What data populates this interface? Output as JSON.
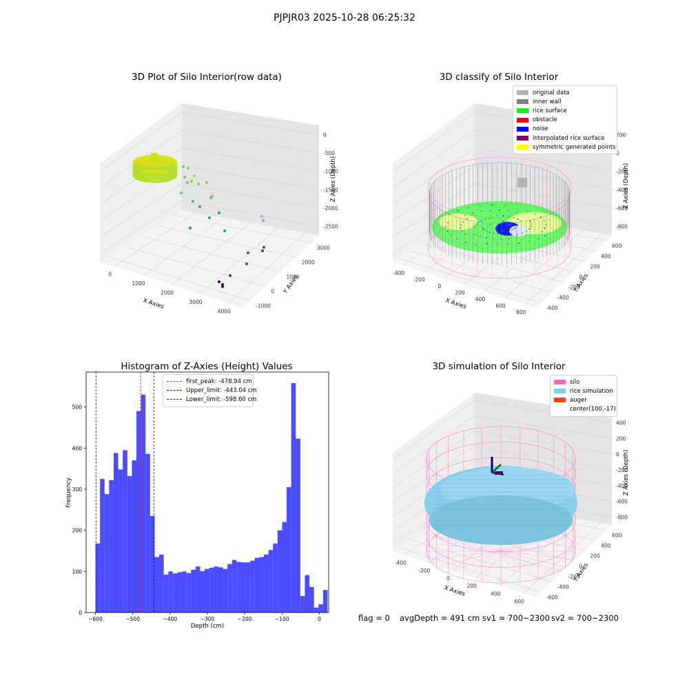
{
  "suptitle": "PJPJR03 2025-10-28 06:25:32",
  "footer": {
    "flag": "flag = 0",
    "avg_depth": "avgDepth = 491 cm",
    "sv1": "sv1 = 700~2300",
    "sv2": "sv2 = 700~2300"
  },
  "panels": {
    "raw": {
      "title": "3D Plot of Silo Interior(row data)"
    },
    "classify": {
      "title": "3D classify of Silo Interior",
      "legend": [
        {
          "label": "original data",
          "color": "#b4b4b4"
        },
        {
          "label": "inner wall",
          "color": "#808080"
        },
        {
          "label": "rice surface",
          "color": "#00ff00"
        },
        {
          "label": "obstacle",
          "color": "#ff0000"
        },
        {
          "label": "noise",
          "color": "#0000ff"
        },
        {
          "label": "interpolated rice surface",
          "color": "#800080"
        },
        {
          "label": "symmetric generated points",
          "color": "#ffff00"
        }
      ]
    },
    "histogram": {
      "title": "Histogram of Z-Axies (Height) Values"
    },
    "simulation": {
      "title": "3D simulation of Silo Interior",
      "legend": [
        {
          "label": "silo",
          "color": "#ff69b4"
        },
        {
          "label": "rice simulation",
          "color": "#87ceeb"
        },
        {
          "label": "auger",
          "color": "#ff4500"
        },
        {
          "label": "center(100,-17)",
          "color": ""
        }
      ]
    }
  },
  "chart_data": [
    {
      "type": "scatter",
      "title": "3D Plot of Silo Interior(row data)",
      "xlabel": "X Axies",
      "ylabel": "Y Axies",
      "zlabel": "Z Axies (Depth)",
      "x_ticks": [
        "0",
        "1000",
        "2000",
        "3000",
        "4000"
      ],
      "y_ticks": [
        "-1000",
        "0",
        "1000",
        "2000",
        "3000"
      ],
      "z_ticks": [
        "0",
        "-500",
        "-1000",
        "-1500",
        "-2000",
        "-2500"
      ],
      "colormap": "viridis"
    },
    {
      "type": "scatter",
      "title": "3D classify of Silo Interior",
      "xlabel": "X Axies",
      "ylabel": "Y Axies",
      "zlabel": "Z Axies (Depth)",
      "x_ticks": [
        "-400",
        "-200",
        "0",
        "200",
        "400",
        "600",
        "800"
      ],
      "y_ticks": [
        "-600",
        "-400",
        "-200",
        "0",
        "200",
        "400",
        "600"
      ],
      "z_ticks": [
        "200",
        "0",
        "-200",
        "-400",
        "-600",
        "-800"
      ],
      "legend_placement": "top-right"
    },
    {
      "type": "bar",
      "title": "Histogram of Z-Axies (Height) Values",
      "xlabel": "Depth (cm)",
      "ylabel": "Frequency",
      "xlim": [
        -625,
        25
      ],
      "ylim": [
        0,
        585
      ],
      "x_ticks": [
        -600,
        -500,
        -400,
        -300,
        -200,
        -100,
        0
      ],
      "y_ticks": [
        0,
        100,
        200,
        300,
        400,
        500
      ],
      "bin_start": -600,
      "bin_width": 12.2,
      "values": [
        168,
        325,
        288,
        322,
        388,
        348,
        395,
        332,
        370,
        490,
        530,
        386,
        235,
        135,
        141,
        92,
        100,
        95,
        98,
        100,
        96,
        104,
        112,
        101,
        106,
        109,
        112,
        110,
        106,
        118,
        128,
        123,
        122,
        122,
        126,
        133,
        135,
        141,
        152,
        168,
        200,
        220,
        305,
        558,
        423,
        40,
        91,
        62,
        12,
        20,
        55
      ],
      "color": "#0000ff",
      "vlines": [
        {
          "label": "first_peak: -478.94 cm",
          "x": -478.94,
          "color": "#ff0000"
        },
        {
          "label": "Upper_limit: -443.04 cm",
          "x": -443.04,
          "color": "#0000ff"
        },
        {
          "label": "Lower_limit: -598.60 cm",
          "x": -598.6,
          "color": "#0000ff"
        }
      ],
      "legend_placement": "top-center"
    },
    {
      "type": "scatter",
      "title": "3D simulation of Silo Interior",
      "xlabel": "X Axies",
      "ylabel": "Y Axies",
      "zlabel": "Z Axies (Depth)",
      "x_ticks": [
        "-400",
        "-200",
        "0",
        "200",
        "400",
        "600"
      ],
      "y_ticks": [
        "-600",
        "-400",
        "-200",
        "0",
        "200",
        "400",
        "600"
      ],
      "z_ticks": [
        "400",
        "200",
        "0",
        "-200",
        "-400",
        "-600",
        "-800"
      ],
      "legend_placement": "top-right"
    }
  ]
}
